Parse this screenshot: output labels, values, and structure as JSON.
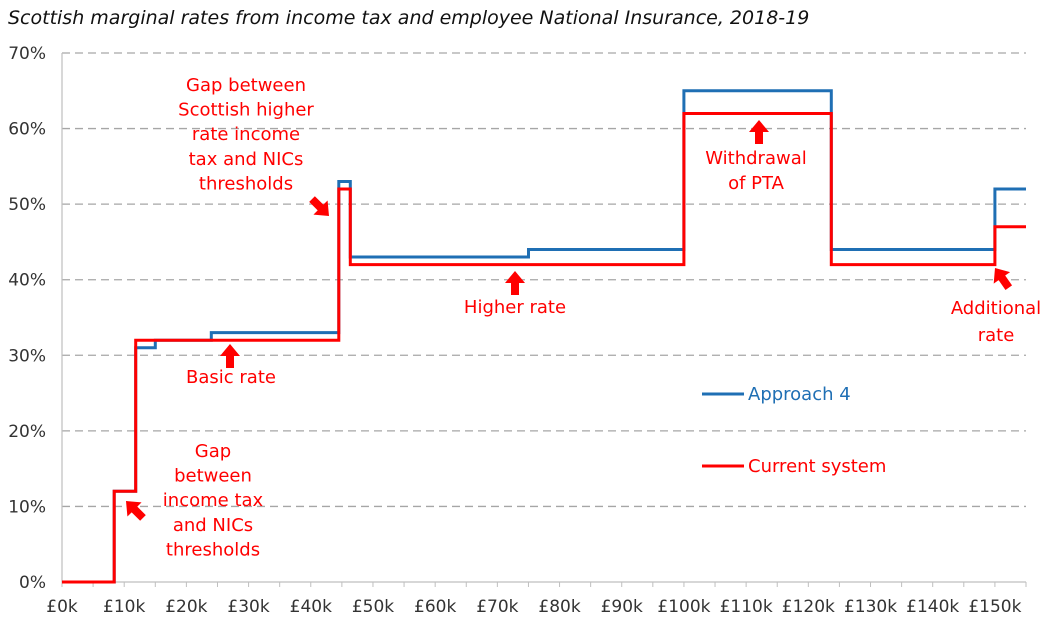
{
  "chart_data": {
    "type": "line",
    "title": "Scottish marginal rates from income tax and employee National Insurance, 2018-19",
    "xlabel": "",
    "ylabel": "",
    "xlim": [
      0,
      155
    ],
    "ylim": [
      0,
      70
    ],
    "grid": true,
    "x_tick_values": [
      0,
      10,
      20,
      30,
      40,
      50,
      60,
      70,
      80,
      90,
      100,
      110,
      120,
      130,
      140,
      150
    ],
    "x_tick_labels": [
      "£0k",
      "£10k",
      "£20k",
      "£30k",
      "£40k",
      "£50k",
      "£60k",
      "£70k",
      "£80k",
      "£90k",
      "£100k",
      "£110k",
      "£120k",
      "£130k",
      "£140k",
      "£150k"
    ],
    "y_tick_values": [
      0,
      10,
      20,
      30,
      40,
      50,
      60,
      70
    ],
    "y_tick_labels": [
      "0%",
      "10%",
      "20%",
      "30%",
      "40%",
      "50%",
      "60%",
      "70%"
    ],
    "series": [
      {
        "name": "Approach 4",
        "color": "#1f6fb4",
        "x": [
          0,
          8.4,
          8.4,
          11.85,
          11.85,
          15,
          15,
          24,
          24,
          44.5,
          44.5,
          46.35,
          46.35,
          75,
          75,
          100,
          100,
          123.7,
          123.7,
          150,
          150,
          155
        ],
        "y": [
          0,
          0,
          12,
          12,
          31,
          31,
          32,
          32,
          33,
          33,
          53,
          53,
          43,
          43,
          44,
          44,
          65,
          65,
          44,
          44,
          52,
          52
        ]
      },
      {
        "name": "Current system",
        "color": "#ff0000",
        "x": [
          0,
          8.4,
          8.4,
          11.85,
          11.85,
          44.5,
          44.5,
          46.35,
          46.35,
          100,
          100,
          123.7,
          123.7,
          150,
          150,
          155
        ],
        "y": [
          0,
          0,
          12,
          12,
          32,
          32,
          52,
          52,
          42,
          42,
          62,
          62,
          42,
          42,
          47,
          47
        ]
      }
    ],
    "annotations": [
      {
        "key": "gap-nics",
        "lines": [
          "Gap",
          "between",
          "income tax",
          "and NICs",
          "thresholds"
        ]
      },
      {
        "key": "basic-rate",
        "lines": [
          "Basic rate"
        ]
      },
      {
        "key": "gap-higher",
        "lines": [
          "Gap between",
          "Scottish higher",
          "rate income",
          "tax and NICs",
          "thresholds"
        ]
      },
      {
        "key": "higher-rate",
        "lines": [
          "Higher rate"
        ]
      },
      {
        "key": "withdrawal-pta",
        "lines": [
          "Withdrawal",
          "of PTA"
        ]
      },
      {
        "key": "additional-rate",
        "lines": [
          "Additional",
          "rate"
        ]
      }
    ]
  }
}
